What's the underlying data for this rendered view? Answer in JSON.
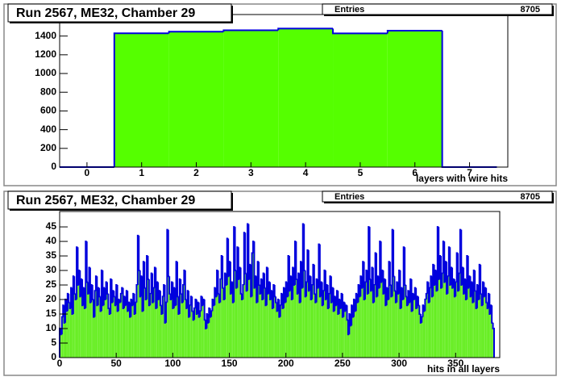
{
  "chart_data": [
    {
      "type": "histogram",
      "title": "Run 2567, ME32, Chamber 29",
      "stats_label": "Entries",
      "stats_value": 8705,
      "x_label": "layers with wire hits",
      "bins": [
        -0.5,
        0.5,
        1.5,
        2.5,
        3.5,
        4.5,
        5.5,
        6.5,
        7.5
      ],
      "values": [
        0,
        1430,
        1447,
        1462,
        1480,
        1428,
        1458,
        0
      ],
      "color": "#55ff00",
      "edge_color": "#0000dd",
      "xlim": [
        -0.5,
        7.7
      ],
      "xticks": [
        0,
        1,
        2,
        3,
        4,
        5,
        6,
        7
      ],
      "ylim": [
        0,
        1630
      ],
      "yticks": [
        0,
        200,
        400,
        600,
        800,
        1000,
        1200,
        1400
      ]
    },
    {
      "type": "histogram",
      "title": "Run 2567, ME32, Chamber 29",
      "stats_label": "Entries",
      "stats_value": 8705,
      "x_label": "hits in all layers",
      "bins": [
        0,
        1,
        2,
        3,
        4,
        5,
        6,
        7,
        8,
        9,
        10,
        11,
        12,
        13,
        14,
        15,
        16,
        17,
        18,
        19,
        20,
        21,
        22,
        23,
        24,
        25,
        26,
        27,
        28,
        29,
        30,
        31,
        32,
        33,
        34,
        35,
        36,
        37,
        38,
        39,
        40,
        41,
        42,
        43,
        44,
        45,
        46,
        47,
        48,
        49,
        50,
        51,
        52,
        53,
        54,
        55,
        56,
        57,
        58,
        59,
        60,
        61,
        62,
        63,
        64,
        65,
        66,
        67,
        68,
        69,
        70,
        71,
        72,
        73,
        74,
        75,
        76,
        77,
        78,
        79,
        80,
        81,
        82,
        83,
        84,
        85,
        86,
        87,
        88,
        89,
        90,
        91,
        92,
        93,
        94,
        95,
        96,
        97,
        98,
        99,
        100,
        101,
        102,
        103,
        104,
        105,
        106,
        107,
        108,
        109,
        110,
        111,
        112,
        113,
        114,
        115,
        116,
        117,
        118,
        119,
        120,
        121,
        122,
        123,
        124,
        125,
        126,
        127,
        128,
        129,
        130,
        131,
        132,
        133,
        134,
        135,
        136,
        137,
        138,
        139,
        140,
        141,
        142,
        143,
        144,
        145,
        146,
        147,
        148,
        149,
        150,
        151,
        152,
        153,
        154,
        155,
        156,
        157,
        158,
        159,
        160,
        161,
        162,
        163,
        164,
        165,
        166,
        167,
        168,
        169,
        170,
        171,
        172,
        173,
        174,
        175,
        176,
        177,
        178,
        179,
        180,
        181,
        182,
        183,
        184,
        185,
        186,
        187,
        188,
        189,
        190,
        191,
        192,
        193,
        194,
        195,
        196,
        197,
        198,
        199,
        200,
        201,
        202,
        203,
        204,
        205,
        206,
        207,
        208,
        209,
        210,
        211,
        212,
        213,
        214,
        215,
        216,
        217,
        218,
        219,
        220,
        221,
        222,
        223,
        224,
        225,
        226,
        227,
        228,
        229,
        230,
        231,
        232,
        233,
        234,
        235,
        236,
        237,
        238,
        239,
        240,
        241,
        242,
        243,
        244,
        245,
        246,
        247,
        248,
        249,
        250,
        251,
        252,
        253,
        254,
        255,
        256,
        257,
        258,
        259,
        260,
        261,
        262,
        263,
        264,
        265,
        266,
        267,
        268,
        269,
        270,
        271,
        272,
        273,
        274,
        275,
        276,
        277,
        278,
        279,
        280,
        281,
        282,
        283,
        284,
        285,
        286,
        287,
        288,
        289,
        290,
        291,
        292,
        293,
        294,
        295,
        296,
        297,
        298,
        299,
        300,
        301,
        302,
        303,
        304,
        305,
        306,
        307,
        308,
        309,
        310,
        311,
        312,
        313,
        314,
        315,
        316,
        317,
        318,
        319,
        320,
        321,
        322,
        323,
        324,
        325,
        326,
        327,
        328,
        329,
        330,
        331,
        332,
        333,
        334,
        335,
        336,
        337,
        338,
        339,
        340,
        341,
        342,
        343,
        344,
        345,
        346,
        347,
        348,
        349,
        350,
        351,
        352,
        353,
        354,
        355,
        356,
        357,
        358,
        359,
        360,
        361,
        362,
        363,
        364,
        365,
        366,
        367,
        368,
        369,
        370,
        371,
        372,
        373,
        374,
        375,
        376,
        377,
        378,
        379,
        380,
        381,
        382,
        383,
        384
      ],
      "values": [
        10,
        8,
        14,
        18,
        12,
        20,
        16,
        22,
        19,
        17,
        24,
        15,
        28,
        22,
        20,
        38,
        25,
        30,
        21,
        27,
        18,
        24,
        17,
        40,
        26,
        22,
        31,
        19,
        25,
        20,
        14,
        23,
        28,
        18,
        24,
        21,
        16,
        30,
        18,
        24,
        20,
        26,
        22,
        17,
        15,
        27,
        19,
        23,
        21,
        18,
        25,
        16,
        20,
        19,
        22,
        24,
        17,
        21,
        18,
        23,
        16,
        19,
        14,
        20,
        18,
        22,
        15,
        19,
        25,
        42,
        30,
        21,
        28,
        16,
        33,
        24,
        20,
        35,
        27,
        18,
        22,
        29,
        19,
        24,
        31,
        17,
        26,
        20,
        23,
        18,
        15,
        21,
        25,
        12,
        19,
        44,
        28,
        22,
        20,
        26,
        17,
        24,
        18,
        33,
        21,
        15,
        27,
        22,
        19,
        25,
        30,
        20,
        17,
        23,
        14,
        18,
        21,
        16,
        13,
        17,
        20,
        15,
        19,
        14,
        16,
        21,
        18,
        20,
        13,
        10,
        15,
        12,
        17,
        14,
        16,
        20,
        18,
        24,
        21,
        30,
        22,
        19,
        27,
        35,
        24,
        20,
        29,
        25,
        41,
        28,
        33,
        22,
        26,
        19,
        45,
        30,
        24,
        38,
        27,
        31,
        22,
        20,
        25,
        43,
        29,
        23,
        46,
        27,
        32,
        21,
        36,
        40,
        24,
        28,
        19,
        33,
        25,
        22,
        27,
        20,
        29,
        24,
        18,
        31,
        22,
        26,
        20,
        23,
        17,
        25,
        21,
        19,
        16,
        20,
        14,
        18,
        22,
        17,
        24,
        19,
        26,
        21,
        35,
        23,
        28,
        20,
        31,
        25,
        40,
        27,
        22,
        29,
        19,
        33,
        24,
        46,
        30,
        21,
        26,
        37,
        23,
        28,
        20,
        25,
        32,
        22,
        19,
        27,
        24,
        39,
        21,
        26,
        18,
        23,
        30,
        20,
        25,
        17,
        22,
        28,
        19,
        24,
        16,
        21,
        18,
        23,
        15,
        20,
        17,
        22,
        14,
        19,
        16,
        18,
        13,
        8,
        15,
        11,
        18,
        14,
        20,
        16,
        22,
        19,
        25,
        21,
        28,
        24,
        33,
        20,
        26,
        30,
        22,
        45,
        27,
        23,
        31,
        19,
        25,
        36,
        21,
        28,
        24,
        40,
        26,
        30,
        22,
        27,
        18,
        24,
        20,
        33,
        25,
        21,
        44,
        28,
        23,
        19,
        26,
        22,
        30,
        17,
        24,
        20,
        38,
        25,
        21,
        18,
        23,
        19,
        27,
        16,
        22,
        20,
        24,
        17,
        21,
        18,
        15,
        12,
        14,
        18,
        16,
        20,
        22,
        26,
        19,
        24,
        28,
        21,
        32,
        25,
        30,
        23,
        45,
        27,
        35,
        24,
        29,
        40,
        26,
        33,
        22,
        28,
        38,
        25,
        31,
        24,
        27,
        21,
        26,
        36,
        23,
        29,
        44,
        25,
        31,
        22,
        27,
        20,
        35,
        24,
        28,
        21,
        26,
        19,
        30,
        23,
        17,
        25,
        20,
        32,
        22,
        18,
        26,
        21,
        24,
        19,
        17,
        22,
        15,
        18,
        12,
        10
      ],
      "color": "#66ee22",
      "edge_color": "#0000dd",
      "xlim": [
        0,
        389
      ],
      "xticks": [
        0,
        50,
        100,
        150,
        200,
        250,
        300,
        350
      ],
      "ylim": [
        0,
        50.3
      ],
      "yticks": [
        0,
        5,
        10,
        15,
        20,
        25,
        30,
        35,
        40,
        45
      ]
    }
  ]
}
